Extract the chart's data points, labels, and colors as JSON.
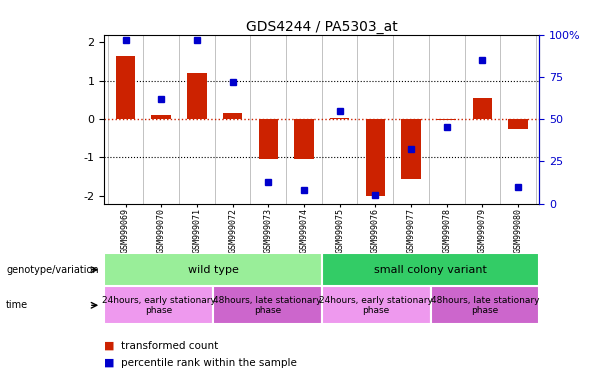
{
  "title": "GDS4244 / PA5303_at",
  "samples": [
    "GSM999069",
    "GSM999070",
    "GSM999071",
    "GSM999072",
    "GSM999073",
    "GSM999074",
    "GSM999075",
    "GSM999076",
    "GSM999077",
    "GSM999078",
    "GSM999079",
    "GSM999080"
  ],
  "bar_values": [
    1.65,
    0.1,
    1.2,
    0.15,
    -1.05,
    -1.05,
    0.02,
    -2.0,
    -1.55,
    -0.02,
    0.55,
    -0.25
  ],
  "dot_values": [
    97,
    62,
    97,
    72,
    13,
    8,
    55,
    5,
    32,
    45,
    85,
    10
  ],
  "ylim": [
    -2.2,
    2.2
  ],
  "yticks_left": [
    -2,
    -1,
    0,
    1,
    2
  ],
  "yticks_right": [
    0,
    25,
    50,
    75,
    100
  ],
  "bar_color": "#CC2200",
  "dot_color": "#0000CC",
  "hline_color": "#CC2200",
  "grid_color": "#000000",
  "background_color": "#ffffff",
  "grid_at": [
    -1,
    1
  ],
  "genotype_groups": [
    {
      "name": "wild type",
      "start": 0,
      "end": 5,
      "color": "#99EE99"
    },
    {
      "name": "small colony variant",
      "start": 6,
      "end": 11,
      "color": "#33CC66"
    }
  ],
  "time_groups": [
    {
      "name": "24hours, early stationary\nphase",
      "start": 0,
      "end": 2,
      "color": "#EE99EE"
    },
    {
      "name": "48hours, late stationary\nphase",
      "start": 3,
      "end": 5,
      "color": "#CC66CC"
    },
    {
      "name": "24hours, early stationary\nphase",
      "start": 6,
      "end": 8,
      "color": "#EE99EE"
    },
    {
      "name": "48hours, late stationary\nphase",
      "start": 9,
      "end": 11,
      "color": "#CC66CC"
    }
  ],
  "legend": [
    {
      "label": "transformed count",
      "color": "#CC2200"
    },
    {
      "label": "percentile rank within the sample",
      "color": "#0000CC"
    }
  ],
  "genotype_label": "genotype/variation",
  "time_label": "time"
}
